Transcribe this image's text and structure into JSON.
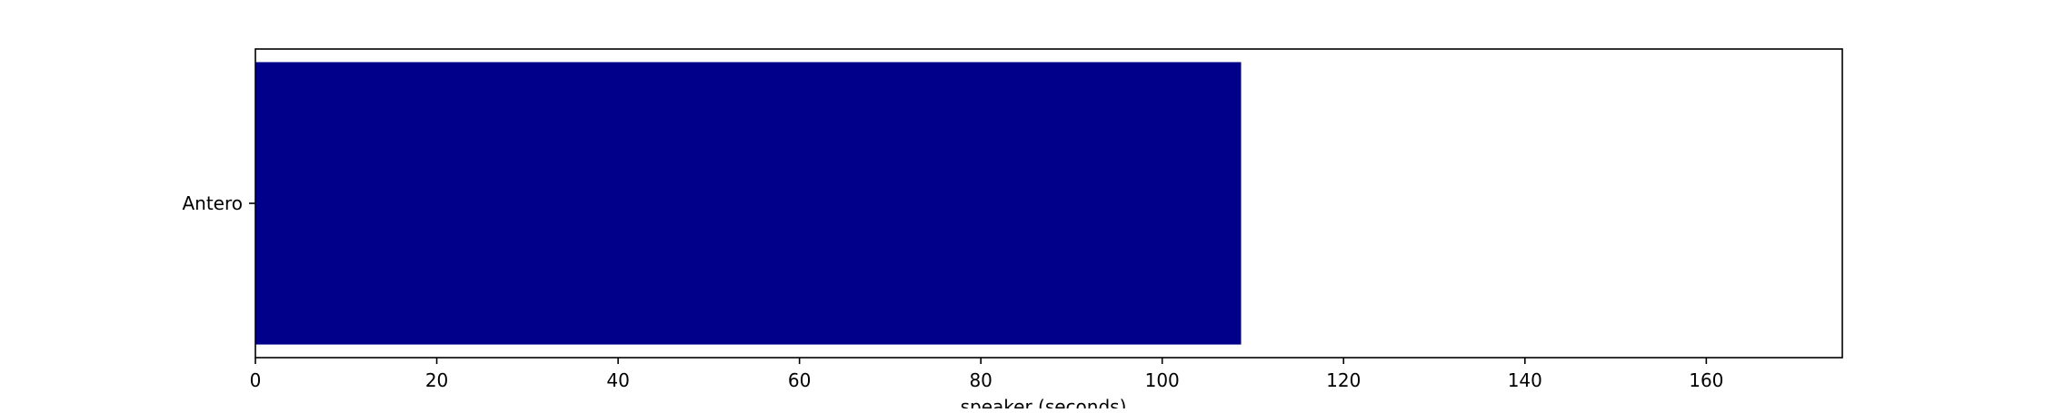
{
  "chart_data": {
    "type": "bar",
    "orientation": "horizontal",
    "categories": [
      "Antero"
    ],
    "values": [
      108.7
    ],
    "title": "",
    "xlabel": "speaker (seconds)",
    "ylabel": "",
    "xlim": [
      0,
      175
    ],
    "xticks": [
      0,
      20,
      40,
      60,
      80,
      100,
      120,
      140,
      160
    ],
    "grid": false,
    "legend": "none",
    "bar_color": "#00008b"
  }
}
